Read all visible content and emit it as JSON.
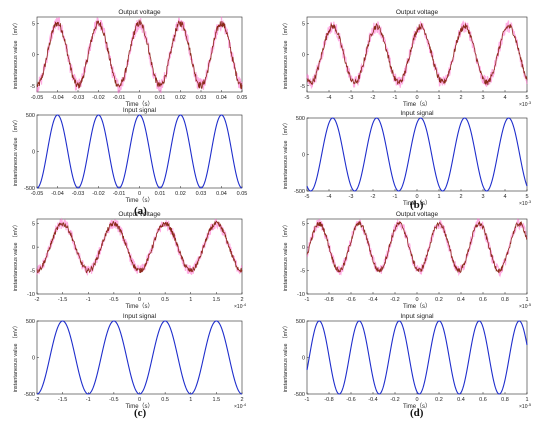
{
  "panels": [
    {
      "label": "(a)"
    },
    {
      "label": "(b)"
    },
    {
      "label": "(c)"
    },
    {
      "label": "(d)"
    }
  ],
  "colors": {
    "output_line": "#8b2a1a",
    "output_noise": "#ff66cc",
    "input_line": "#1f2ecc",
    "axis": "#262626",
    "grid": "#ebebeb"
  },
  "chart_data": [
    {
      "panel": "(a)",
      "type": "line",
      "title": "Output voltage",
      "xlabel": "Time（s）",
      "ylabel": "instantaneous value （mV）",
      "xlim": [
        -0.05,
        0.05
      ],
      "ylim": [
        -6,
        6
      ],
      "xticks": [
        "-0.05",
        "-0.04",
        "-0.03",
        "-0.02",
        "-0.01",
        "0",
        "0.01",
        "0.02",
        "0.03",
        "0.04",
        "0.05"
      ],
      "yticks": [
        "-5",
        "0",
        "5"
      ],
      "x_exponent": "",
      "series": [
        {
          "waveform": "sine",
          "amplitude": 5,
          "cycles": 5,
          "phase_deg": -90,
          "color": "#8b2a1a",
          "noisy": true
        }
      ]
    },
    {
      "panel": "(a)",
      "type": "line",
      "title": "Input signal",
      "xlabel": "Time（s）",
      "ylabel": "instantaneous value （mV）",
      "xlim": [
        -0.05,
        0.05
      ],
      "ylim": [
        -500,
        500
      ],
      "xticks": [
        "-0.05",
        "-0.04",
        "-0.03",
        "-0.02",
        "-0.01",
        "0",
        "0.01",
        "0.02",
        "0.03",
        "0.04",
        "0.05"
      ],
      "yticks": [
        "-500",
        "0",
        "500"
      ],
      "x_exponent": "",
      "series": [
        {
          "waveform": "sine",
          "amplitude": 500,
          "cycles": 5,
          "phase_deg": -90,
          "color": "#1f2ecc",
          "noisy": false
        }
      ]
    },
    {
      "panel": "(b)",
      "type": "line",
      "title": "Output voltage",
      "xlabel": "Time（s）",
      "ylabel": "instantaneous value （mV）",
      "xlim": [
        -5,
        5
      ],
      "ylim": [
        -6,
        6
      ],
      "xticks": [
        "-5",
        "-4",
        "-3",
        "-2",
        "-1",
        "0",
        "1",
        "2",
        "3",
        "4",
        "5"
      ],
      "yticks": [
        "-5",
        "0",
        "5"
      ],
      "x_exponent": "×10",
      "x_exponent_power": "-3",
      "series": [
        {
          "waveform": "sine",
          "amplitude": 4.5,
          "cycles": 5,
          "phase_deg": -120,
          "color": "#8b2a1a",
          "noisy": true
        }
      ]
    },
    {
      "panel": "(b)",
      "type": "line",
      "title": "Input signal",
      "xlabel": "Time（s）",
      "ylabel": "instantaneous value （mV）",
      "xlim": [
        -5,
        5
      ],
      "ylim": [
        -500,
        500
      ],
      "xticks": [
        "-5",
        "-4",
        "-3",
        "-2",
        "-1",
        "0",
        "1",
        "2",
        "3",
        "4",
        "5"
      ],
      "yticks": [
        "-500",
        "0",
        "500"
      ],
      "x_exponent": "×10",
      "x_exponent_power": "-3",
      "series": [
        {
          "waveform": "sine",
          "amplitude": 500,
          "cycles": 5,
          "phase_deg": -120,
          "color": "#1f2ecc",
          "noisy": false
        }
      ]
    },
    {
      "panel": "(c)",
      "type": "line",
      "title": "Output voltage",
      "xlabel": "Time（s）",
      "ylabel": "instantaneous value （mV）",
      "xlim": [
        -2,
        2
      ],
      "ylim": [
        -10,
        6
      ],
      "xticks": [
        "-2",
        "-1.5",
        "-1",
        "-0.5",
        "0",
        "0.5",
        "1",
        "1.5",
        "2"
      ],
      "yticks": [
        "-10",
        "-5",
        "0",
        "5"
      ],
      "x_exponent": "×10",
      "x_exponent_power": "-4",
      "series": [
        {
          "waveform": "sine",
          "amplitude": 5,
          "cycles": 4,
          "phase_deg": -90,
          "color": "#8b2a1a",
          "noisy": true
        }
      ]
    },
    {
      "panel": "(c)",
      "type": "line",
      "title": "Input signal",
      "xlabel": "Time（s）",
      "ylabel": "instantaneous value （mV）",
      "xlim": [
        -2,
        2
      ],
      "ylim": [
        -500,
        500
      ],
      "xticks": [
        "-2",
        "-1.5",
        "-1",
        "-0.5",
        "0",
        "0.5",
        "1",
        "1.5",
        "2"
      ],
      "yticks": [
        "-500",
        "0",
        "500"
      ],
      "x_exponent": "×10",
      "x_exponent_power": "-4",
      "series": [
        {
          "waveform": "sine",
          "amplitude": 500,
          "cycles": 4,
          "phase_deg": -90,
          "color": "#1f2ecc",
          "noisy": false
        }
      ]
    },
    {
      "panel": "(d)",
      "type": "line",
      "title": "Output voltage",
      "xlabel": "Time（s）",
      "ylabel": "instantaneous value （mV）",
      "xlim": [
        -1,
        1
      ],
      "ylim": [
        -10,
        6
      ],
      "xticks": [
        "-1",
        "-0.8",
        "-0.6",
        "-0.4",
        "-0.2",
        "0",
        "0.2",
        "0.4",
        "0.6",
        "0.8",
        "1"
      ],
      "yticks": [
        "-10",
        "-5",
        "0",
        "5"
      ],
      "x_exponent": "×10",
      "x_exponent_power": "-5",
      "series": [
        {
          "waveform": "sine",
          "amplitude": 5,
          "cycles": 5.5,
          "phase_deg": -20,
          "color": "#8b2a1a",
          "noisy": true
        }
      ]
    },
    {
      "panel": "(d)",
      "type": "line",
      "title": "Input signal",
      "xlabel": "Time（s）",
      "ylabel": "instantaneous value （mV）",
      "xlim": [
        -1,
        1
      ],
      "ylim": [
        -500,
        500
      ],
      "xticks": [
        "-1",
        "-0.8",
        "-0.6",
        "-0.4",
        "-0.2",
        "0",
        "0.2",
        "0.4",
        "0.6",
        "0.8",
        "1"
      ],
      "yticks": [
        "-500",
        "0",
        "500"
      ],
      "x_exponent": "×10",
      "x_exponent_power": "-5",
      "series": [
        {
          "waveform": "sine",
          "amplitude": 500,
          "cycles": 5.5,
          "phase_deg": -20,
          "color": "#1f2ecc",
          "noisy": false
        }
      ]
    }
  ]
}
